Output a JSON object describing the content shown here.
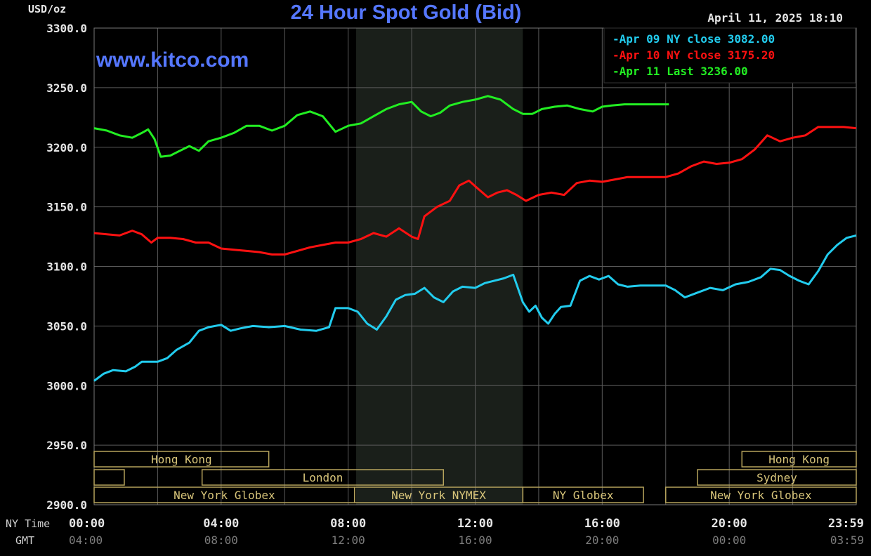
{
  "chart_data": {
    "type": "line",
    "title": "24 Hour Spot Gold (Bid)",
    "watermark": "www.kitco.com",
    "timestamp": "April 11, 2025 18:10",
    "ylabel": "USD/oz",
    "ylim": [
      2900,
      3300
    ],
    "y_ticks": [
      "3300.0",
      "3250.0",
      "3200.0",
      "3150.0",
      "3100.0",
      "3050.0",
      "3000.0",
      "2950.0",
      "2900.0"
    ],
    "y_tick_values": [
      3300,
      3250,
      3200,
      3150,
      3100,
      3050,
      3000,
      2950,
      2900
    ],
    "xlim": [
      0,
      24
    ],
    "x_ticks_hours": [
      0,
      4,
      8,
      12,
      16,
      20,
      24
    ],
    "row_labels": {
      "ny_time": "NY Time",
      "gmt": "GMT"
    },
    "x_ticks_ny": [
      "00:00",
      "04:00",
      "08:00",
      "12:00",
      "16:00",
      "20:00",
      "23:59"
    ],
    "x_ticks_gmt": [
      "04:00",
      "08:00",
      "12:00",
      "16:00",
      "20:00",
      "00:00",
      "03:59"
    ],
    "grid": true,
    "shaded_range_hours": [
      8.25,
      13.5
    ],
    "legend": [
      {
        "label": "Apr 09 NY close 3082.00",
        "color": "#22ccee"
      },
      {
        "label": "Apr 10 NY close 3175.20",
        "color": "#ff1111"
      },
      {
        "label": "Apr 11 Last 3236.00",
        "color": "#22ee22"
      }
    ],
    "series": [
      {
        "name": "Apr 09",
        "color": "#22ccee",
        "points": [
          [
            0,
            3004
          ],
          [
            0.3,
            3010
          ],
          [
            0.6,
            3013
          ],
          [
            1.0,
            3012
          ],
          [
            1.3,
            3016
          ],
          [
            1.5,
            3020
          ],
          [
            2.0,
            3020
          ],
          [
            2.3,
            3023
          ],
          [
            2.6,
            3030
          ],
          [
            3.0,
            3036
          ],
          [
            3.3,
            3046
          ],
          [
            3.6,
            3049
          ],
          [
            4.0,
            3051
          ],
          [
            4.3,
            3046
          ],
          [
            4.6,
            3048
          ],
          [
            5.0,
            3050
          ],
          [
            5.5,
            3049
          ],
          [
            6.0,
            3050
          ],
          [
            6.5,
            3047
          ],
          [
            7.0,
            3046
          ],
          [
            7.4,
            3049
          ],
          [
            7.6,
            3065
          ],
          [
            8.0,
            3065
          ],
          [
            8.3,
            3062
          ],
          [
            8.6,
            3052
          ],
          [
            8.9,
            3047
          ],
          [
            9.2,
            3058
          ],
          [
            9.5,
            3072
          ],
          [
            9.8,
            3076
          ],
          [
            10.1,
            3077
          ],
          [
            10.4,
            3082
          ],
          [
            10.7,
            3074
          ],
          [
            11.0,
            3070
          ],
          [
            11.3,
            3079
          ],
          [
            11.6,
            3083
          ],
          [
            12.0,
            3082
          ],
          [
            12.3,
            3086
          ],
          [
            12.6,
            3088
          ],
          [
            12.9,
            3090
          ],
          [
            13.2,
            3093
          ],
          [
            13.5,
            3070
          ],
          [
            13.7,
            3062
          ],
          [
            13.9,
            3067
          ],
          [
            14.1,
            3057
          ],
          [
            14.3,
            3052
          ],
          [
            14.5,
            3060
          ],
          [
            14.7,
            3066
          ],
          [
            15.0,
            3067
          ],
          [
            15.3,
            3088
          ],
          [
            15.6,
            3092
          ],
          [
            15.9,
            3089
          ],
          [
            16.2,
            3092
          ],
          [
            16.5,
            3085
          ],
          [
            16.8,
            3083
          ],
          [
            17.2,
            3084
          ],
          [
            17.6,
            3084
          ],
          [
            18.0,
            3084
          ],
          [
            18.3,
            3080
          ],
          [
            18.6,
            3074
          ],
          [
            19.0,
            3078
          ],
          [
            19.4,
            3082
          ],
          [
            19.8,
            3080
          ],
          [
            20.2,
            3085
          ],
          [
            20.6,
            3087
          ],
          [
            21.0,
            3091
          ],
          [
            21.3,
            3098
          ],
          [
            21.6,
            3097
          ],
          [
            21.9,
            3092
          ],
          [
            22.2,
            3088
          ],
          [
            22.5,
            3085
          ],
          [
            22.8,
            3096
          ],
          [
            23.1,
            3110
          ],
          [
            23.4,
            3118
          ],
          [
            23.7,
            3124
          ],
          [
            24.0,
            3126
          ]
        ]
      },
      {
        "name": "Apr 10",
        "color": "#ff1111",
        "points": [
          [
            0,
            3128
          ],
          [
            0.4,
            3127
          ],
          [
            0.8,
            3126
          ],
          [
            1.2,
            3130
          ],
          [
            1.5,
            3127
          ],
          [
            1.8,
            3120
          ],
          [
            2.0,
            3124
          ],
          [
            2.4,
            3124
          ],
          [
            2.8,
            3123
          ],
          [
            3.2,
            3120
          ],
          [
            3.6,
            3120
          ],
          [
            4.0,
            3115
          ],
          [
            4.4,
            3114
          ],
          [
            4.8,
            3113
          ],
          [
            5.2,
            3112
          ],
          [
            5.6,
            3110
          ],
          [
            6.0,
            3110
          ],
          [
            6.4,
            3113
          ],
          [
            6.8,
            3116
          ],
          [
            7.2,
            3118
          ],
          [
            7.6,
            3120
          ],
          [
            8.0,
            3120
          ],
          [
            8.4,
            3123
          ],
          [
            8.8,
            3128
          ],
          [
            9.2,
            3125
          ],
          [
            9.6,
            3132
          ],
          [
            10.0,
            3125
          ],
          [
            10.2,
            3123
          ],
          [
            10.4,
            3142
          ],
          [
            10.8,
            3150
          ],
          [
            11.2,
            3155
          ],
          [
            11.5,
            3168
          ],
          [
            11.8,
            3172
          ],
          [
            12.1,
            3165
          ],
          [
            12.4,
            3158
          ],
          [
            12.7,
            3162
          ],
          [
            13.0,
            3164
          ],
          [
            13.3,
            3160
          ],
          [
            13.6,
            3155
          ],
          [
            14.0,
            3160
          ],
          [
            14.4,
            3162
          ],
          [
            14.8,
            3160
          ],
          [
            15.2,
            3170
          ],
          [
            15.6,
            3172
          ],
          [
            16.0,
            3171
          ],
          [
            16.4,
            3173
          ],
          [
            16.8,
            3175
          ],
          [
            17.2,
            3175
          ],
          [
            17.6,
            3175
          ],
          [
            18.0,
            3175
          ],
          [
            18.4,
            3178
          ],
          [
            18.8,
            3184
          ],
          [
            19.2,
            3188
          ],
          [
            19.6,
            3186
          ],
          [
            20.0,
            3187
          ],
          [
            20.4,
            3190
          ],
          [
            20.8,
            3198
          ],
          [
            21.2,
            3210
          ],
          [
            21.6,
            3205
          ],
          [
            22.0,
            3208
          ],
          [
            22.4,
            3210
          ],
          [
            22.8,
            3217
          ],
          [
            23.2,
            3217
          ],
          [
            23.6,
            3217
          ],
          [
            24.0,
            3216
          ]
        ]
      },
      {
        "name": "Apr 11",
        "color": "#22ee22",
        "points": [
          [
            0,
            3216
          ],
          [
            0.4,
            3214
          ],
          [
            0.8,
            3210
          ],
          [
            1.2,
            3208
          ],
          [
            1.5,
            3212
          ],
          [
            1.7,
            3215
          ],
          [
            1.9,
            3207
          ],
          [
            2.1,
            3192
          ],
          [
            2.4,
            3193
          ],
          [
            2.7,
            3197
          ],
          [
            3.0,
            3201
          ],
          [
            3.3,
            3197
          ],
          [
            3.6,
            3205
          ],
          [
            4.0,
            3208
          ],
          [
            4.4,
            3212
          ],
          [
            4.8,
            3218
          ],
          [
            5.2,
            3218
          ],
          [
            5.6,
            3214
          ],
          [
            6.0,
            3218
          ],
          [
            6.4,
            3227
          ],
          [
            6.8,
            3230
          ],
          [
            7.2,
            3226
          ],
          [
            7.6,
            3213
          ],
          [
            8.0,
            3218
          ],
          [
            8.4,
            3220
          ],
          [
            8.8,
            3226
          ],
          [
            9.2,
            3232
          ],
          [
            9.6,
            3236
          ],
          [
            10.0,
            3238
          ],
          [
            10.3,
            3230
          ],
          [
            10.6,
            3226
          ],
          [
            10.9,
            3229
          ],
          [
            11.2,
            3235
          ],
          [
            11.6,
            3238
          ],
          [
            12.0,
            3240
          ],
          [
            12.4,
            3243
          ],
          [
            12.8,
            3240
          ],
          [
            13.2,
            3232
          ],
          [
            13.5,
            3228
          ],
          [
            13.8,
            3228
          ],
          [
            14.1,
            3232
          ],
          [
            14.5,
            3234
          ],
          [
            14.9,
            3235
          ],
          [
            15.3,
            3232
          ],
          [
            15.7,
            3230
          ],
          [
            16.0,
            3234
          ],
          [
            16.3,
            3235
          ],
          [
            16.7,
            3236
          ],
          [
            17.0,
            3236
          ],
          [
            17.4,
            3236
          ],
          [
            17.8,
            3236
          ],
          [
            18.1,
            3236
          ]
        ]
      }
    ],
    "sessions": [
      {
        "label": "Hong Kong",
        "start": 0,
        "end": 5.5,
        "row": 0
      },
      {
        "label": "Hong Kong",
        "start": 20.4,
        "end": 24,
        "row": 0
      },
      {
        "label": "",
        "start": 0,
        "end": 0.95,
        "row": 1
      },
      {
        "label": "London",
        "start": 3.4,
        "end": 11.0,
        "row": 1
      },
      {
        "label": "Sydney",
        "start": 19.0,
        "end": 24,
        "row": 1
      },
      {
        "label": "New York Globex",
        "start": 0,
        "end": 8.2,
        "row": 2
      },
      {
        "label": "New York NYMEX",
        "start": 8.2,
        "end": 13.5,
        "row": 2
      },
      {
        "label": "NY Globex",
        "start": 13.5,
        "end": 17.3,
        "row": 2
      },
      {
        "label": "New York Globex",
        "start": 18.0,
        "end": 24,
        "row": 2
      }
    ]
  }
}
